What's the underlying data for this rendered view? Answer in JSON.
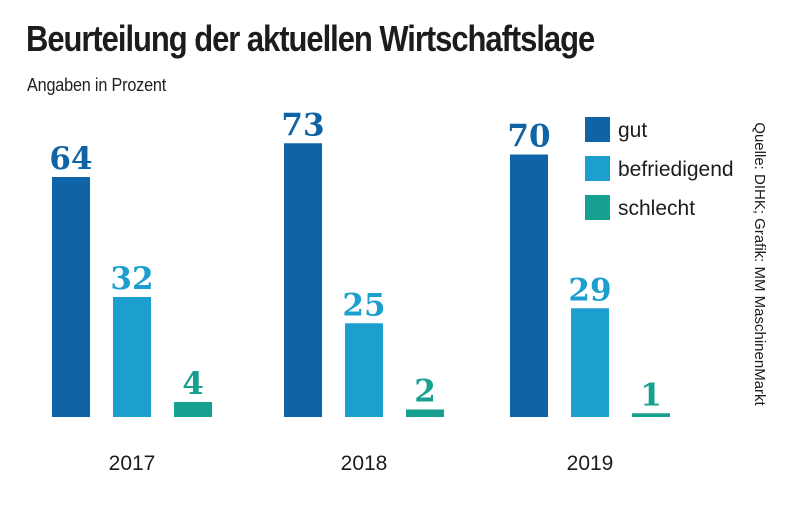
{
  "title": "Beurteilung der aktuellen Wirtschaftslage",
  "subtitle": "Angaben in Prozent",
  "source": "Quelle: DIHK; Grafik: MM MaschinenMarkt",
  "chart_data": {
    "type": "bar",
    "title": "Beurteilung der aktuellen Wirtschaftslage",
    "ylabel": "Angaben in Prozent",
    "categories": [
      "2017",
      "2018",
      "2019"
    ],
    "ylim": [
      0,
      100
    ],
    "legend_position": "top-right",
    "series": [
      {
        "name": "gut",
        "color": "#0e64a6",
        "values": [
          64,
          73,
          70
        ]
      },
      {
        "name": "befriedigend",
        "color": "#1c9fcf",
        "values": [
          32,
          25,
          29
        ]
      },
      {
        "name": "schlecht",
        "color": "#15a08f",
        "values": [
          4,
          2,
          1
        ]
      }
    ]
  }
}
